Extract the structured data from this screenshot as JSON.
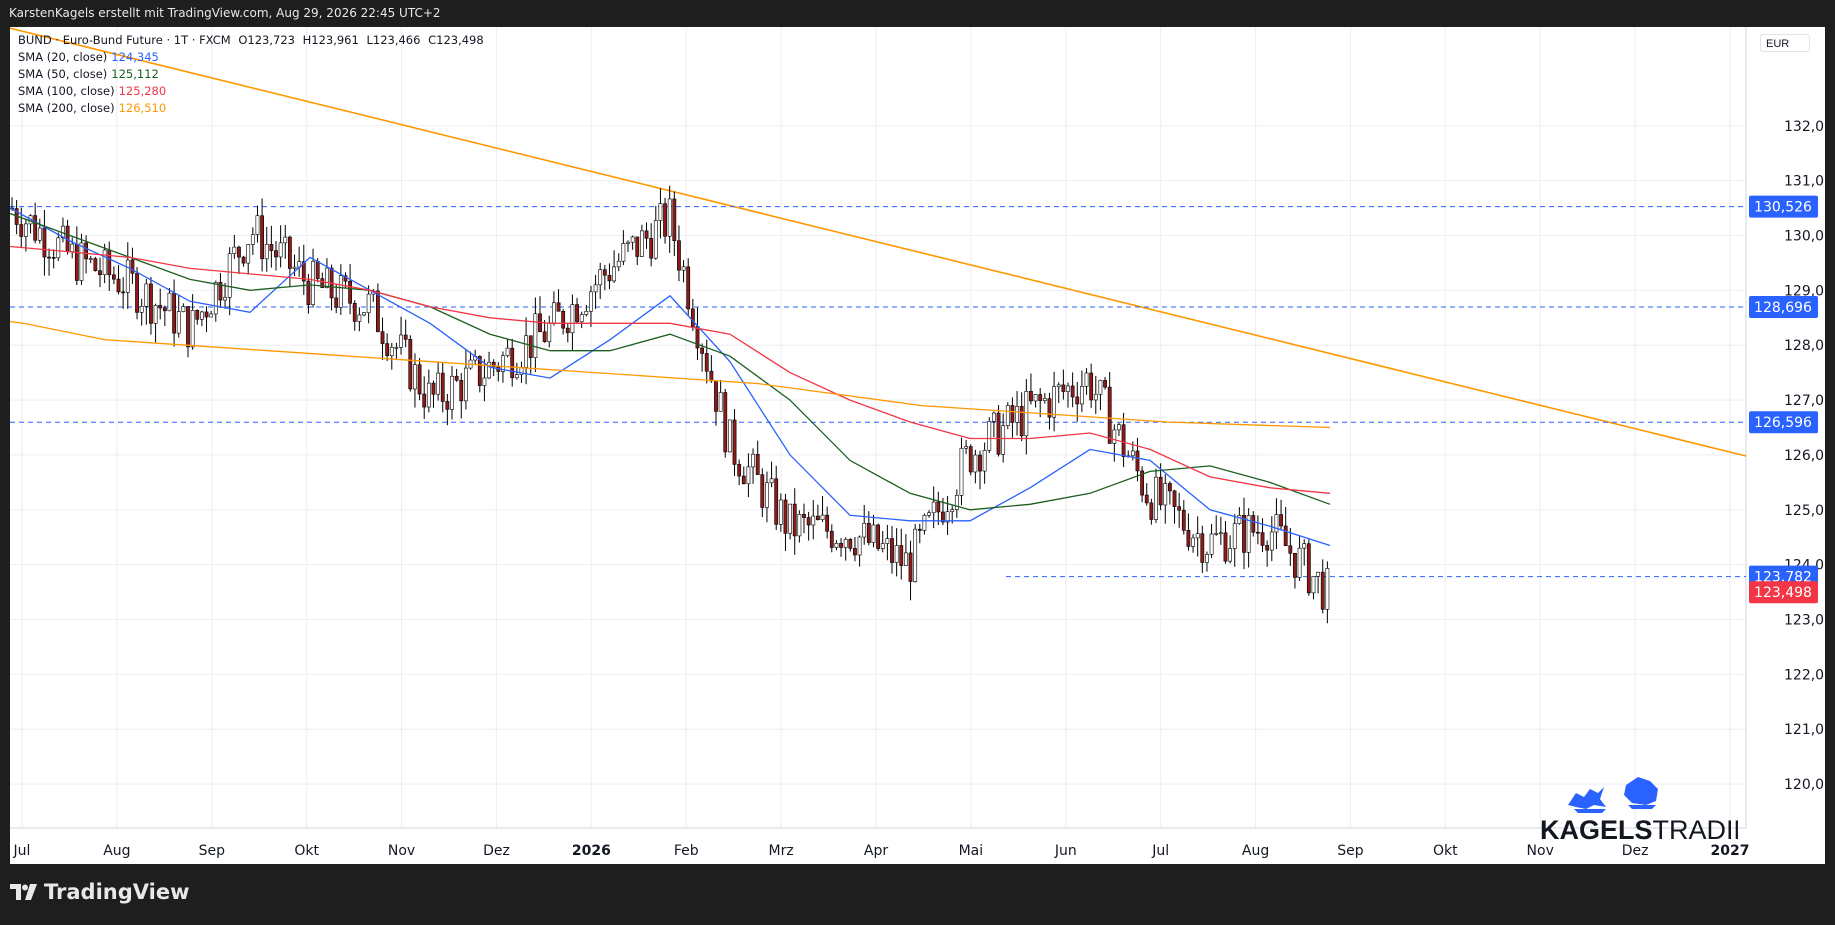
{
  "header": {
    "caption": "KarstenKagels erstellt mit TradingView.com, Aug 29, 2026 22:45 UTC+2"
  },
  "legend": {
    "symbol_line": "BUND · Euro-Bund Future · 1T · FXCM",
    "ohlc": {
      "o": "O123,723",
      "h": "H123,961",
      "l": "L123,466",
      "c": "C123,498"
    },
    "indicators": [
      {
        "label": "SMA (20, close)",
        "value": "124,345",
        "color": "#2962ff"
      },
      {
        "label": "SMA (50, close)",
        "value": "125,112",
        "color": "#1b5e20"
      },
      {
        "label": "SMA (100, close)",
        "value": "125,280",
        "color": "#f23645"
      },
      {
        "label": "SMA (200, close)",
        "value": "126,510",
        "color": "#ff9800"
      }
    ]
  },
  "currency": "EUR",
  "footer": {
    "logo_text": "TradingView"
  },
  "brand": {
    "text_bold": "KAGELS",
    "text_light": "TRADING",
    "icon": "bull-bear-icon"
  },
  "chart_data": {
    "type": "candlestick",
    "x_axis_labels": [
      "Jul",
      "Aug",
      "Sep",
      "Okt",
      "Nov",
      "Dez",
      "2026",
      "Feb",
      "Mrz",
      "Apr",
      "Mai",
      "Jun",
      "Jul",
      "Aug",
      "Sep",
      "Okt",
      "Nov",
      "Dez",
      "2027"
    ],
    "y_axis_labels": [
      "132,000",
      "131,000",
      "130,000",
      "129,000",
      "128,000",
      "127,000",
      "126,000",
      "125,000",
      "124,000",
      "123,000",
      "122,000",
      "121,000",
      "120,000"
    ],
    "ylim": [
      119.2,
      133.8
    ],
    "horizontal_levels": [
      {
        "price": 130.526,
        "label": "130,526"
      },
      {
        "price": 128.696,
        "label": "128,696"
      },
      {
        "price": 126.596,
        "label": "126,596"
      },
      {
        "price": 123.782,
        "label": "123,782"
      }
    ],
    "last_price": {
      "price": 123.498,
      "label": "123,498",
      "color": "#f23645"
    },
    "trendline": {
      "from": [
        "Jul 2025",
        133.7
      ],
      "to": [
        "Jan 2027",
        125.98
      ],
      "color": "#ff9800"
    },
    "series_close": [
      {
        "x": "Jul",
        "y": 130.5
      },
      {
        "x": "Aug",
        "y": 129.6
      },
      {
        "x": "Sep",
        "y": 129.1
      },
      {
        "x": "Okt",
        "y": 128.3
      },
      {
        "x": "Okt2",
        "y": 130.1
      },
      {
        "x": "Nov",
        "y": 129.1
      },
      {
        "x": "Dez",
        "y": 128.7
      },
      {
        "x": "Dez2",
        "y": 127.0
      },
      {
        "x": "2026",
        "y": 127.6
      },
      {
        "x": "Feb",
        "y": 128.3
      },
      {
        "x": "Feb2",
        "y": 129.4
      },
      {
        "x": "Mrz",
        "y": 130.3
      },
      {
        "x": "Mrz2",
        "y": 126.2
      },
      {
        "x": "Apr",
        "y": 124.7
      },
      {
        "x": "Mai",
        "y": 124.6
      },
      {
        "x": "Mai2",
        "y": 124.0
      },
      {
        "x": "Jun",
        "y": 126.0
      },
      {
        "x": "Jun2",
        "y": 126.8
      },
      {
        "x": "Jul",
        "y": 127.4
      },
      {
        "x": "Jul2",
        "y": 125.3
      },
      {
        "x": "Aug",
        "y": 124.4
      },
      {
        "x": "Aug2",
        "y": 124.7
      },
      {
        "x": "Sep",
        "y": 123.5
      }
    ],
    "sma": {
      "sma20": [
        130.5,
        129.9,
        129.4,
        128.8,
        128.6,
        129.6,
        129.0,
        128.4,
        127.6,
        127.4,
        128.1,
        128.9,
        127.7,
        126.0,
        124.9,
        124.8,
        124.8,
        125.4,
        126.1,
        125.9,
        125.0,
        124.7,
        124.35
      ],
      "sma50": [
        130.4,
        130.0,
        129.6,
        129.2,
        129.0,
        129.1,
        129.0,
        128.7,
        128.2,
        127.9,
        127.9,
        128.2,
        127.8,
        127.0,
        125.9,
        125.3,
        125.0,
        125.1,
        125.3,
        125.7,
        125.8,
        125.5,
        125.1
      ],
      "sma100": [
        129.8,
        129.7,
        129.6,
        129.4,
        129.3,
        129.2,
        129.0,
        128.7,
        128.5,
        128.4,
        128.4,
        128.4,
        128.2,
        127.5,
        127.0,
        126.6,
        126.3,
        126.3,
        126.4,
        126.1,
        125.6,
        125.4,
        125.3
      ],
      "sma200": [
        128.8,
        128.6,
        128.4,
        128.1,
        128.0,
        127.9,
        127.8,
        127.7,
        127.6,
        127.5,
        127.4,
        127.3,
        127.1,
        126.9,
        126.8,
        126.7,
        126.6,
        126.55,
        126.5
      ]
    }
  }
}
